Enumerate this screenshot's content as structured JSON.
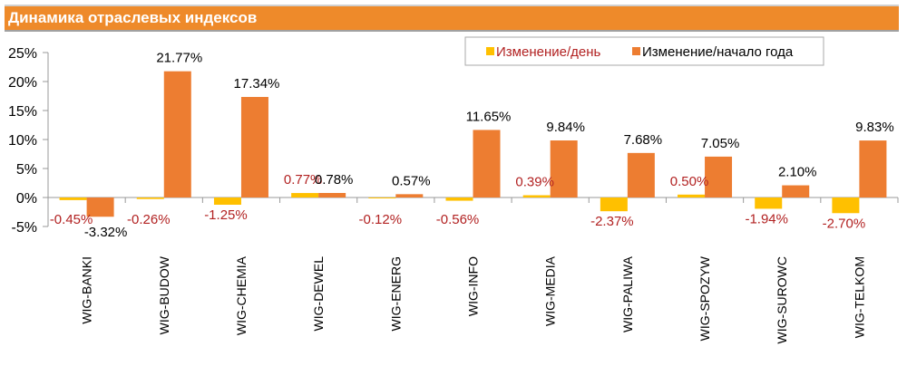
{
  "header": {
    "title": "Динамика отраслевых индексов"
  },
  "colors": {
    "daily": "#FFC000",
    "ytd": "#ED7D31",
    "daily_label": "#B22222",
    "ytd_label": "#000000",
    "title_bg": "#EE8A2A"
  },
  "chart_data": {
    "type": "bar",
    "title": "Динамика отраслевых индексов",
    "categories": [
      "WIG-BANKI",
      "WIG-BUDOW",
      "WIG-CHEMIA",
      "WIG-DEWEL",
      "WIG-ENERG",
      "WIG-INFO",
      "WIG-MEDIA",
      "WIG-PALIWA",
      "WIG-SPOZYW",
      "WIG-SUROWC",
      "WIG-TELKOM"
    ],
    "series": [
      {
        "name": "Изменение/день",
        "values": [
          -0.45,
          -0.26,
          -1.25,
          0.77,
          -0.12,
          -0.56,
          0.39,
          -2.37,
          0.5,
          -1.94,
          -2.7
        ],
        "labels": [
          "-0.45%",
          "-0.26%",
          "-1.25%",
          "0.77%",
          "-0.12%",
          "-0.56%",
          "0.39%",
          "-2.37%",
          "0.50%",
          "-1.94%",
          "-2.70%"
        ]
      },
      {
        "name": "Изменение/начало года",
        "values": [
          -3.32,
          21.77,
          17.34,
          0.78,
          0.57,
          11.65,
          9.84,
          7.68,
          7.05,
          2.1,
          9.83
        ],
        "labels": [
          "-3.32%",
          "21.77%",
          "17.34%",
          "0.78%",
          "0.57%",
          "11.65%",
          "9.84%",
          "7.68%",
          "7.05%",
          "2.10%",
          "9.83%"
        ]
      }
    ],
    "yticks": [
      "25%",
      "20%",
      "15%",
      "10%",
      "5%",
      "0%",
      "-5%"
    ],
    "ytick_values": [
      25,
      20,
      15,
      10,
      5,
      0,
      -5
    ],
    "ylim": [
      -5,
      25
    ],
    "xlabel": "",
    "ylabel": "",
    "legend": "top-right",
    "grid": false
  }
}
